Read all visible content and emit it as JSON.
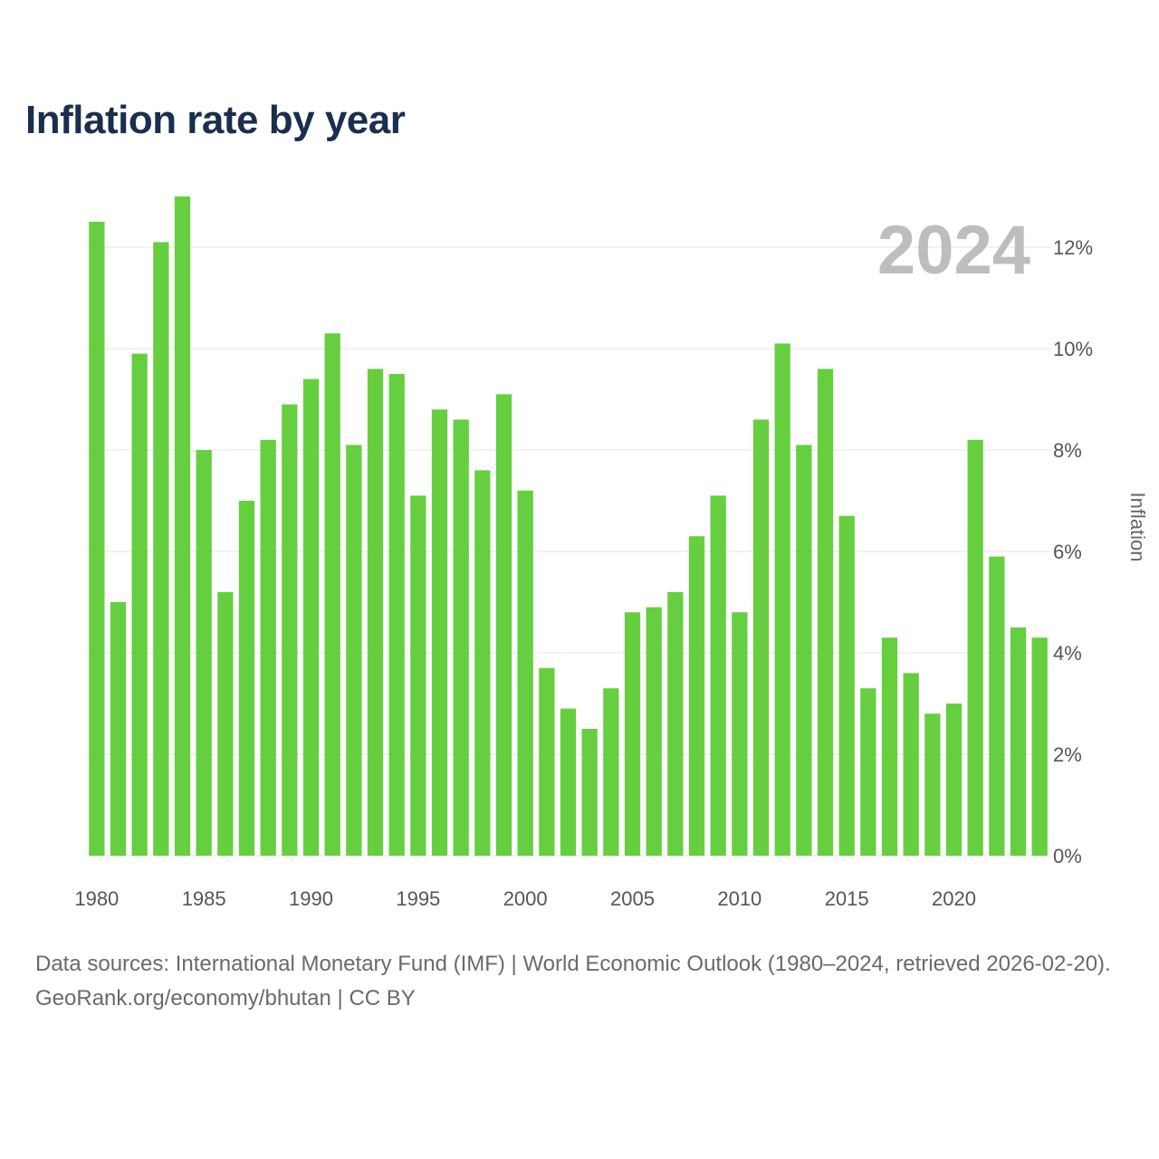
{
  "chart_data": {
    "type": "bar",
    "title": "Inflation rate by year",
    "highlight_year": "2024",
    "xlabel": "",
    "ylabel": "Inflation",
    "ylim": [
      0,
      13
    ],
    "y_ticks": [
      0,
      2,
      4,
      6,
      8,
      10,
      12
    ],
    "y_tick_labels": [
      "0%",
      "2%",
      "4%",
      "6%",
      "8%",
      "10%",
      "12%"
    ],
    "x_ticks": [
      1980,
      1985,
      1990,
      1995,
      2000,
      2005,
      2010,
      2015,
      2020
    ],
    "x_tick_labels": [
      "1980",
      "1985",
      "1990",
      "1995",
      "2000",
      "2005",
      "2010",
      "2015",
      "2020"
    ],
    "bar_color": "#66cf40",
    "categories": [
      1980,
      1981,
      1982,
      1983,
      1984,
      1985,
      1986,
      1987,
      1988,
      1989,
      1990,
      1991,
      1992,
      1993,
      1994,
      1995,
      1996,
      1997,
      1998,
      1999,
      2000,
      2001,
      2002,
      2003,
      2004,
      2005,
      2006,
      2007,
      2008,
      2009,
      2010,
      2011,
      2012,
      2013,
      2014,
      2015,
      2016,
      2017,
      2018,
      2019,
      2020,
      2021,
      2022,
      2023,
      2024
    ],
    "values": [
      12.5,
      5.0,
      9.9,
      12.1,
      13.0,
      8.0,
      5.2,
      7.0,
      8.2,
      8.9,
      9.4,
      10.3,
      8.1,
      9.6,
      9.5,
      7.1,
      8.8,
      8.6,
      7.6,
      9.1,
      7.2,
      3.7,
      2.9,
      2.5,
      3.3,
      4.8,
      4.9,
      5.2,
      6.3,
      7.1,
      4.8,
      8.6,
      10.1,
      8.1,
      9.6,
      6.7,
      3.3,
      4.3,
      3.6,
      2.8,
      3.0,
      8.2,
      5.9,
      4.5,
      4.3
    ]
  },
  "footer": {
    "sources": "Data sources: International Monetary Fund (IMF) | World Economic Outlook (1980–2024, retrieved 2026-02-20).",
    "attribution": "GeoRank.org/economy/bhutan | CC BY"
  }
}
